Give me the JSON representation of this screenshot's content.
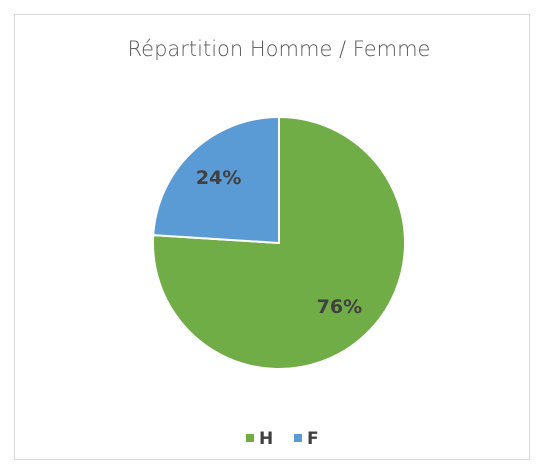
{
  "chart_data": {
    "type": "pie",
    "title": "Répartition Homme / Femme",
    "categories": [
      "H",
      "F"
    ],
    "values": [
      76,
      24
    ],
    "value_labels": [
      "76%",
      "24%"
    ],
    "colors": [
      "#70ad47",
      "#5b9bd5"
    ],
    "legend": "bottom"
  }
}
